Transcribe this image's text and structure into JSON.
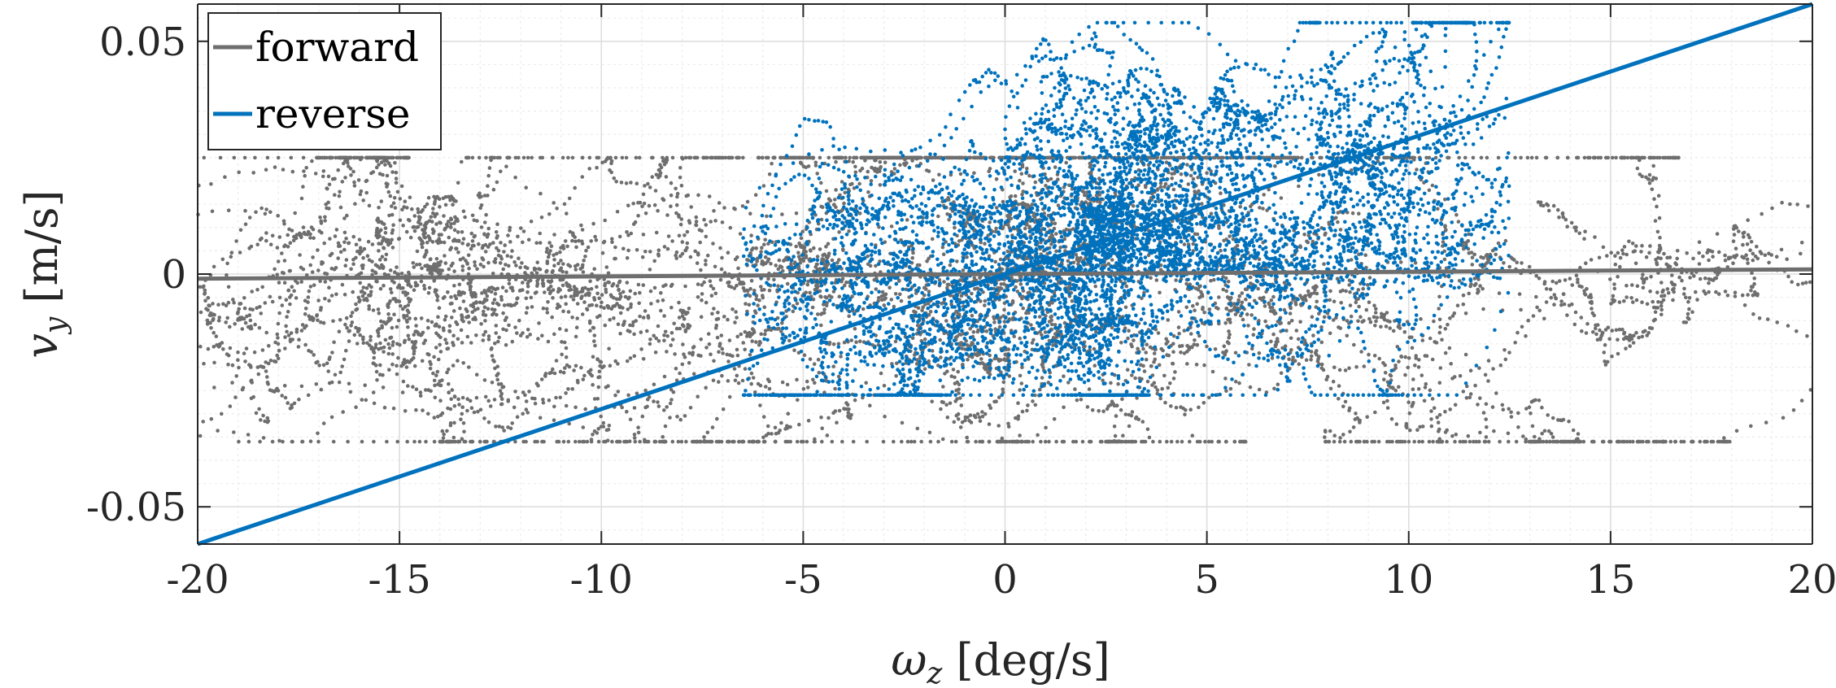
{
  "chart_data": {
    "type": "scatter",
    "title": "",
    "xlabel": "ωz [deg/s]",
    "xlabel_symbol": "ω",
    "xlabel_sub": "z",
    "xlabel_unit": " [deg/s]",
    "ylabel": "vy [m/s]",
    "ylabel_symbol": "v",
    "ylabel_sub": "y",
    "ylabel_unit": " [m/s]",
    "xlim": [
      -20,
      20
    ],
    "ylim": [
      -0.058,
      0.058
    ],
    "xticks": [
      -20,
      -15,
      -10,
      -5,
      0,
      5,
      10,
      15,
      20
    ],
    "xtick_labels": [
      "-20",
      "-15",
      "-10",
      "-5",
      "0",
      "5",
      "10",
      "15",
      "20"
    ],
    "yticks": [
      -0.05,
      0,
      0.05
    ],
    "ytick_labels": [
      "-0.05",
      "0",
      "0.05"
    ],
    "grid": true,
    "minor_grid": true,
    "legend_position": "top-left",
    "series": [
      {
        "name": "forward",
        "color": "#6e6e6e",
        "fit_line": {
          "slope": 5e-05,
          "intercept": 0.0
        },
        "scatter_extent": {
          "x": [
            -20,
            20
          ],
          "y": [
            -0.036,
            0.025
          ]
        }
      },
      {
        "name": "reverse",
        "color": "#0072bd",
        "fit_line": {
          "slope": 0.0029,
          "intercept": 0.0
        },
        "scatter_extent": {
          "x": [
            -6.5,
            12.5
          ],
          "y": [
            -0.026,
            0.054
          ]
        }
      }
    ]
  }
}
